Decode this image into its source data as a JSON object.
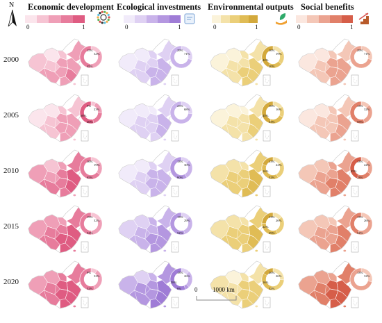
{
  "north_label": "N",
  "indicators": [
    {
      "key": "econ",
      "title": "Economic development",
      "min_label": "0",
      "max_label": "1",
      "colors": [
        "#fbe5ec",
        "#f6c4d3",
        "#ef9fb7",
        "#e77c9c",
        "#df5c82"
      ],
      "icon": "circular-dots-icon"
    },
    {
      "key": "eco",
      "title": "Ecological investments",
      "min_label": "0",
      "max_label": "1",
      "colors": [
        "#f1ebfa",
        "#dfd1f3",
        "#c9b3ea",
        "#b497e0",
        "#9f7cd6"
      ],
      "icon": "document-icon"
    },
    {
      "key": "env",
      "title": "Environmental outputs",
      "min_label": "0",
      "max_label": "1",
      "colors": [
        "#fbf3da",
        "#f4e2a9",
        "#ebcf79",
        "#e0bc55",
        "#d3a93c"
      ],
      "icon": "hand-leaf-icon"
    },
    {
      "key": "soc",
      "title": "Social benefits",
      "min_label": "0",
      "max_label": "1",
      "colors": [
        "#fbe7df",
        "#f4c7b7",
        "#eba390",
        "#e18069",
        "#d65e49"
      ],
      "icon": "stairs-chart-icon"
    }
  ],
  "years": [
    "2000",
    "2005",
    "2010",
    "2015",
    "2020"
  ],
  "scale": {
    "zero": "0",
    "distance": "1000 km"
  },
  "chart_data": {
    "type": "donut-grid",
    "rows": [
      "2000",
      "2005",
      "2010",
      "2015",
      "2020"
    ],
    "cols": [
      "Economic development",
      "Ecological investments",
      "Environmental outputs",
      "Social benefits"
    ],
    "map_shade": [
      [
        0.35,
        0.25,
        0.25,
        0.3
      ],
      [
        0.3,
        0.2,
        0.2,
        0.22
      ],
      [
        0.62,
        0.3,
        0.45,
        0.5
      ],
      [
        0.7,
        0.5,
        0.4,
        0.45
      ],
      [
        0.78,
        0.65,
        0.32,
        0.75
      ]
    ],
    "donuts": [
      [
        {
          "labels": [
            "15%",
            "32%",
            "45%"
          ],
          "values": [
            15,
            32,
            45
          ]
        },
        {
          "labels": [
            "29%",
            "71%"
          ],
          "values": [
            29,
            71
          ]
        },
        {
          "labels": [
            "16%",
            "19%",
            "20%",
            "42%"
          ],
          "values": [
            16,
            19,
            20,
            42
          ]
        },
        {
          "labels": [
            "29%",
            "71%"
          ],
          "values": [
            29,
            71
          ]
        }
      ],
      [
        {
          "labels": [
            "9%",
            "23%",
            "26%",
            "68%"
          ],
          "values": [
            9,
            23,
            26,
            68
          ]
        },
        {
          "labels": [
            "25%",
            "68%"
          ],
          "values": [
            25,
            68
          ]
        },
        {
          "labels": [
            "16%",
            "16%",
            "23%",
            "45%"
          ],
          "values": [
            16,
            16,
            23,
            45
          ]
        },
        {
          "labels": [
            "13%",
            "32%",
            "55%"
          ],
          "values": [
            13,
            32,
            55
          ]
        }
      ],
      [
        {
          "labels": [
            "16%",
            "19%",
            "65%"
          ],
          "values": [
            16,
            19,
            65
          ]
        },
        {
          "labels": [
            "13%",
            "30%",
            "60%"
          ],
          "values": [
            13,
            30,
            60
          ]
        },
        {
          "labels": [
            "13%",
            "22%",
            "32%",
            "16%"
          ],
          "values": [
            13,
            22,
            32,
            16
          ]
        },
        {
          "labels": [
            "13%",
            "22%",
            "23%",
            "45%"
          ],
          "values": [
            13,
            22,
            23,
            45
          ]
        }
      ],
      [
        {
          "labels": [
            "19%",
            "32%",
            "52%"
          ],
          "values": [
            19,
            32,
            52
          ]
        },
        {
          "labels": [
            "13%",
            "29%",
            "52%"
          ],
          "values": [
            13,
            29,
            52
          ]
        },
        {
          "labels": [
            "13%",
            "26%",
            "29%",
            "22%"
          ],
          "values": [
            13,
            26,
            29,
            22
          ]
        },
        {
          "labels": [
            "13%",
            "26%",
            "32%"
          ],
          "values": [
            13,
            26,
            32
          ]
        }
      ],
      [
        {
          "labels": [
            "9%",
            "32%",
            "52%"
          ],
          "values": [
            9,
            32,
            52
          ]
        },
        {
          "labels": [
            "13%",
            "26%",
            "6%",
            "58%"
          ],
          "values": [
            13,
            26,
            6,
            58
          ]
        },
        {
          "labels": [
            "26%",
            "26%",
            "32%",
            "16%"
          ],
          "values": [
            26,
            26,
            32,
            16
          ]
        },
        {
          "labels": [
            "13%",
            "32%"
          ],
          "values": [
            13,
            32
          ]
        }
      ]
    ]
  }
}
